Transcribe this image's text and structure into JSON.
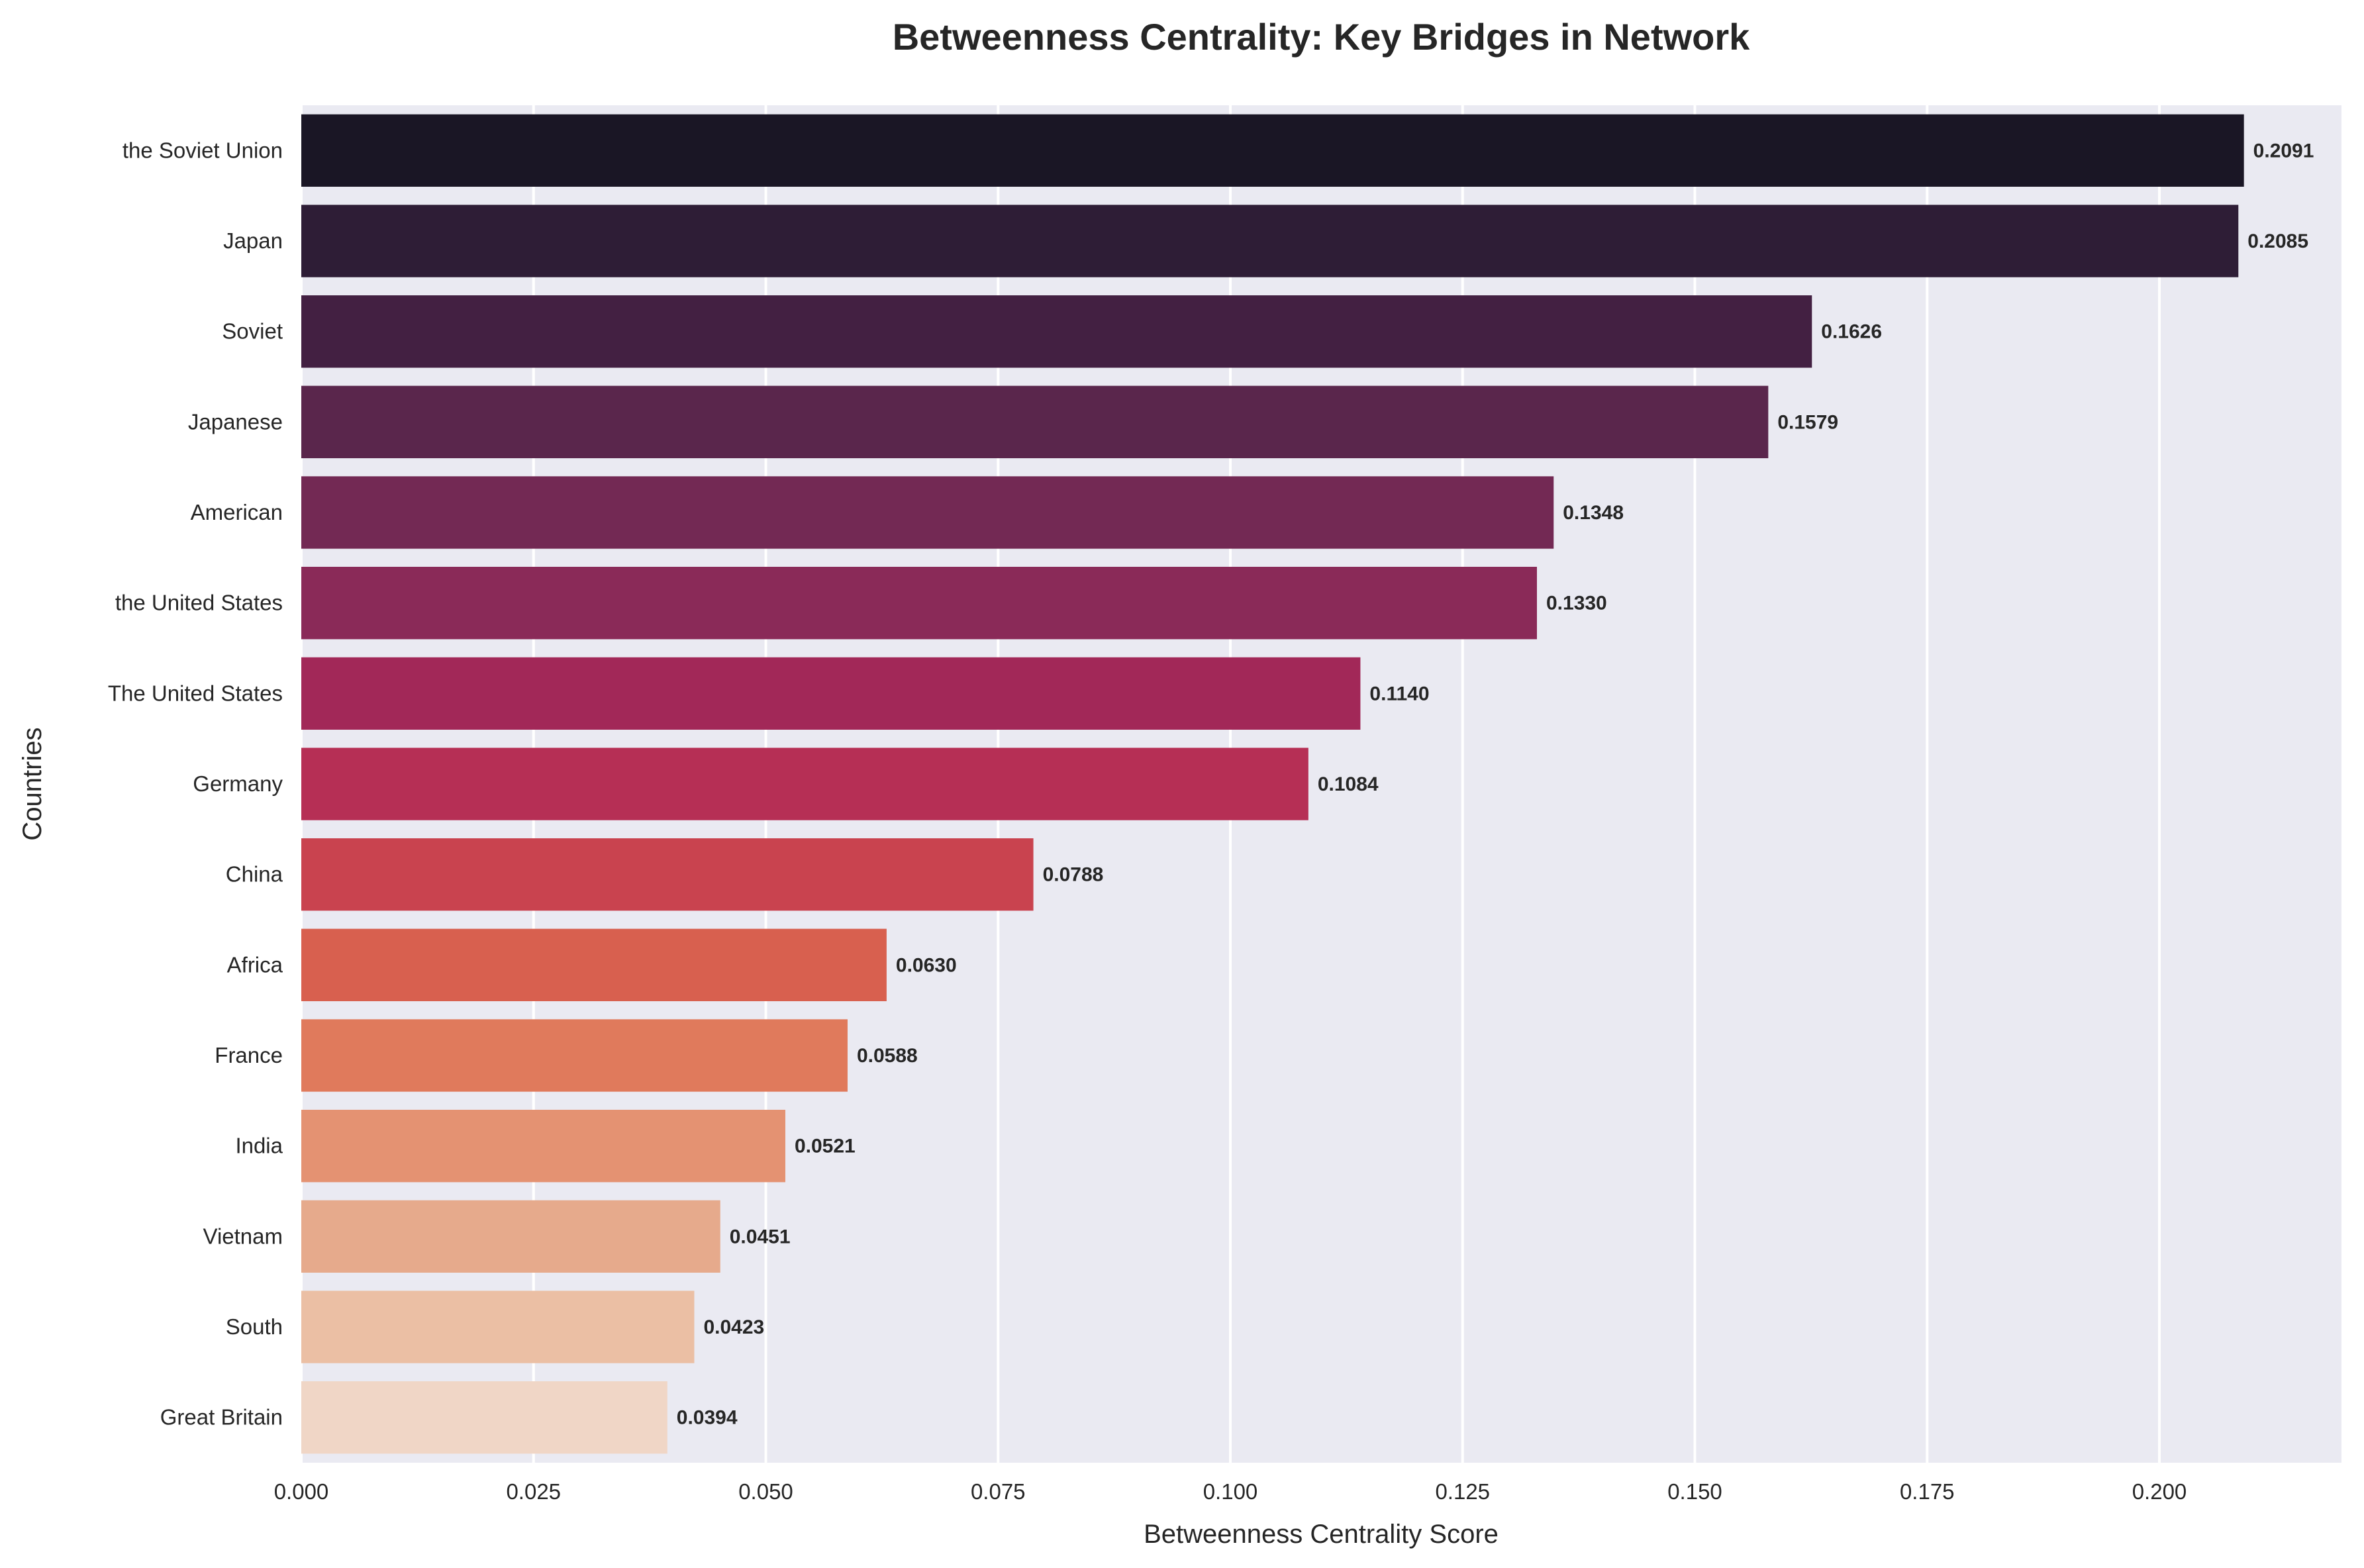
{
  "chart_data": {
    "type": "bar",
    "orientation": "horizontal",
    "title": "Betweenness Centrality: Key Bridges in Network",
    "xlabel": "Betweenness Centrality Score",
    "ylabel": "Countries",
    "categories": [
      "the Soviet Union",
      "Japan",
      "Soviet",
      "Japanese",
      "American",
      "the United States",
      "The United States",
      "Germany",
      "China",
      "Africa",
      "France",
      "India",
      "Vietnam",
      "South",
      "Great Britain"
    ],
    "values": [
      0.2091,
      0.2085,
      0.1626,
      0.1579,
      0.1348,
      0.133,
      0.114,
      0.1084,
      0.0788,
      0.063,
      0.0588,
      0.0521,
      0.0451,
      0.0423,
      0.0394
    ],
    "value_labels": [
      "0.2091",
      "0.2085",
      "0.1626",
      "0.1579",
      "0.1348",
      "0.1330",
      "0.1140",
      "0.1084",
      "0.0788",
      "0.0630",
      "0.0588",
      "0.0521",
      "0.0451",
      "0.0423",
      "0.0394"
    ],
    "colors": [
      "#1a1625",
      "#2e1d36",
      "#432042",
      "#5a264c",
      "#732954",
      "#8a2a58",
      "#a22858",
      "#b62f55",
      "#c9434f",
      "#d8604f",
      "#e07a5c",
      "#e49272",
      "#e6aa8c",
      "#ebbfa4",
      "#f0d6c6"
    ],
    "xlim": [
      0,
      0.2196
    ],
    "xticks": [
      0,
      0.025,
      0.05,
      0.075,
      0.1,
      0.125,
      0.15,
      0.175,
      0.2
    ],
    "xtick_labels": [
      "0.000",
      "0.025",
      "0.050",
      "0.075",
      "0.100",
      "0.125",
      "0.150",
      "0.175",
      "0.200"
    ],
    "grid": "vertical",
    "background": "#eaeaf2"
  }
}
